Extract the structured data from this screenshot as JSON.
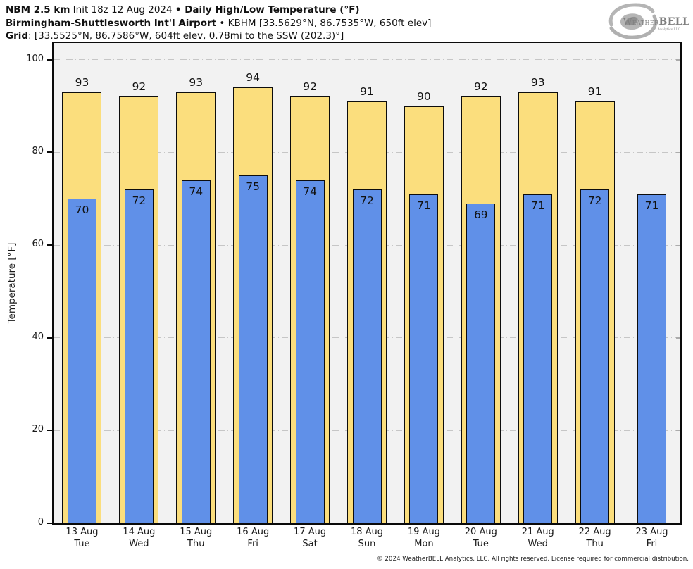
{
  "header": {
    "line1": {
      "model": "NBM 2.5 km",
      "init": " Init 18z 12 Aug 2024 ",
      "sep": "•",
      "product": " Daily High/Low Temperature (°F)"
    },
    "line2": {
      "station": "Birmingham-Shuttlesworth Int'l Airport",
      "sep": " • ",
      "details": "KBHM [33.5629°N, 86.7535°W, 650ft elev]"
    },
    "line3": {
      "label": "Grid",
      "details": ": [33.5525°N, 86.7586°W, 604ft elev, 0.78mi to the SSW (202.3)°]"
    }
  },
  "logo": {
    "text_weather": "Weather",
    "text_bell": "BELL",
    "subtext": "Analytics LLC"
  },
  "chart_data": {
    "type": "bar",
    "title": "Daily High/Low Temperature (°F)",
    "xlabel": "",
    "ylabel": "Temperature [°F]",
    "ylim": [
      0,
      103.6
    ],
    "yticks": [
      0,
      20,
      40,
      60,
      80,
      100
    ],
    "grid": {
      "horizontal": true,
      "style": "dash-dot",
      "color": "#c6c6c6"
    },
    "legend_position": "none",
    "plot_background": "#f2f2f2",
    "categories": [
      "13 Aug",
      "14 Aug",
      "15 Aug",
      "16 Aug",
      "17 Aug",
      "18 Aug",
      "19 Aug",
      "20 Aug",
      "21 Aug",
      "22 Aug",
      "23 Aug"
    ],
    "weekdays": [
      "Tue",
      "Wed",
      "Thu",
      "Fri",
      "Sat",
      "Sun",
      "Mon",
      "Tue",
      "Wed",
      "Thu",
      "Fri"
    ],
    "series": [
      {
        "name": "High",
        "color": "#fbde7d",
        "values": [
          93,
          92,
          93,
          94,
          92,
          91,
          90,
          92,
          93,
          91,
          null
        ]
      },
      {
        "name": "Low",
        "color": "#6090e8",
        "values": [
          70,
          72,
          74,
          75,
          74,
          72,
          71,
          69,
          71,
          72,
          71
        ]
      }
    ]
  },
  "footer": {
    "copyright": "© 2024 WeatherBELL Analytics, LLC. All rights reserved. License required for commercial distribution."
  },
  "colors": {
    "high_bar": "#fbde7d",
    "low_bar": "#6090e8",
    "bar_border": "#0d0d0d",
    "plot_bg": "#f2f2f2",
    "gridline": "#c6c6c6"
  }
}
